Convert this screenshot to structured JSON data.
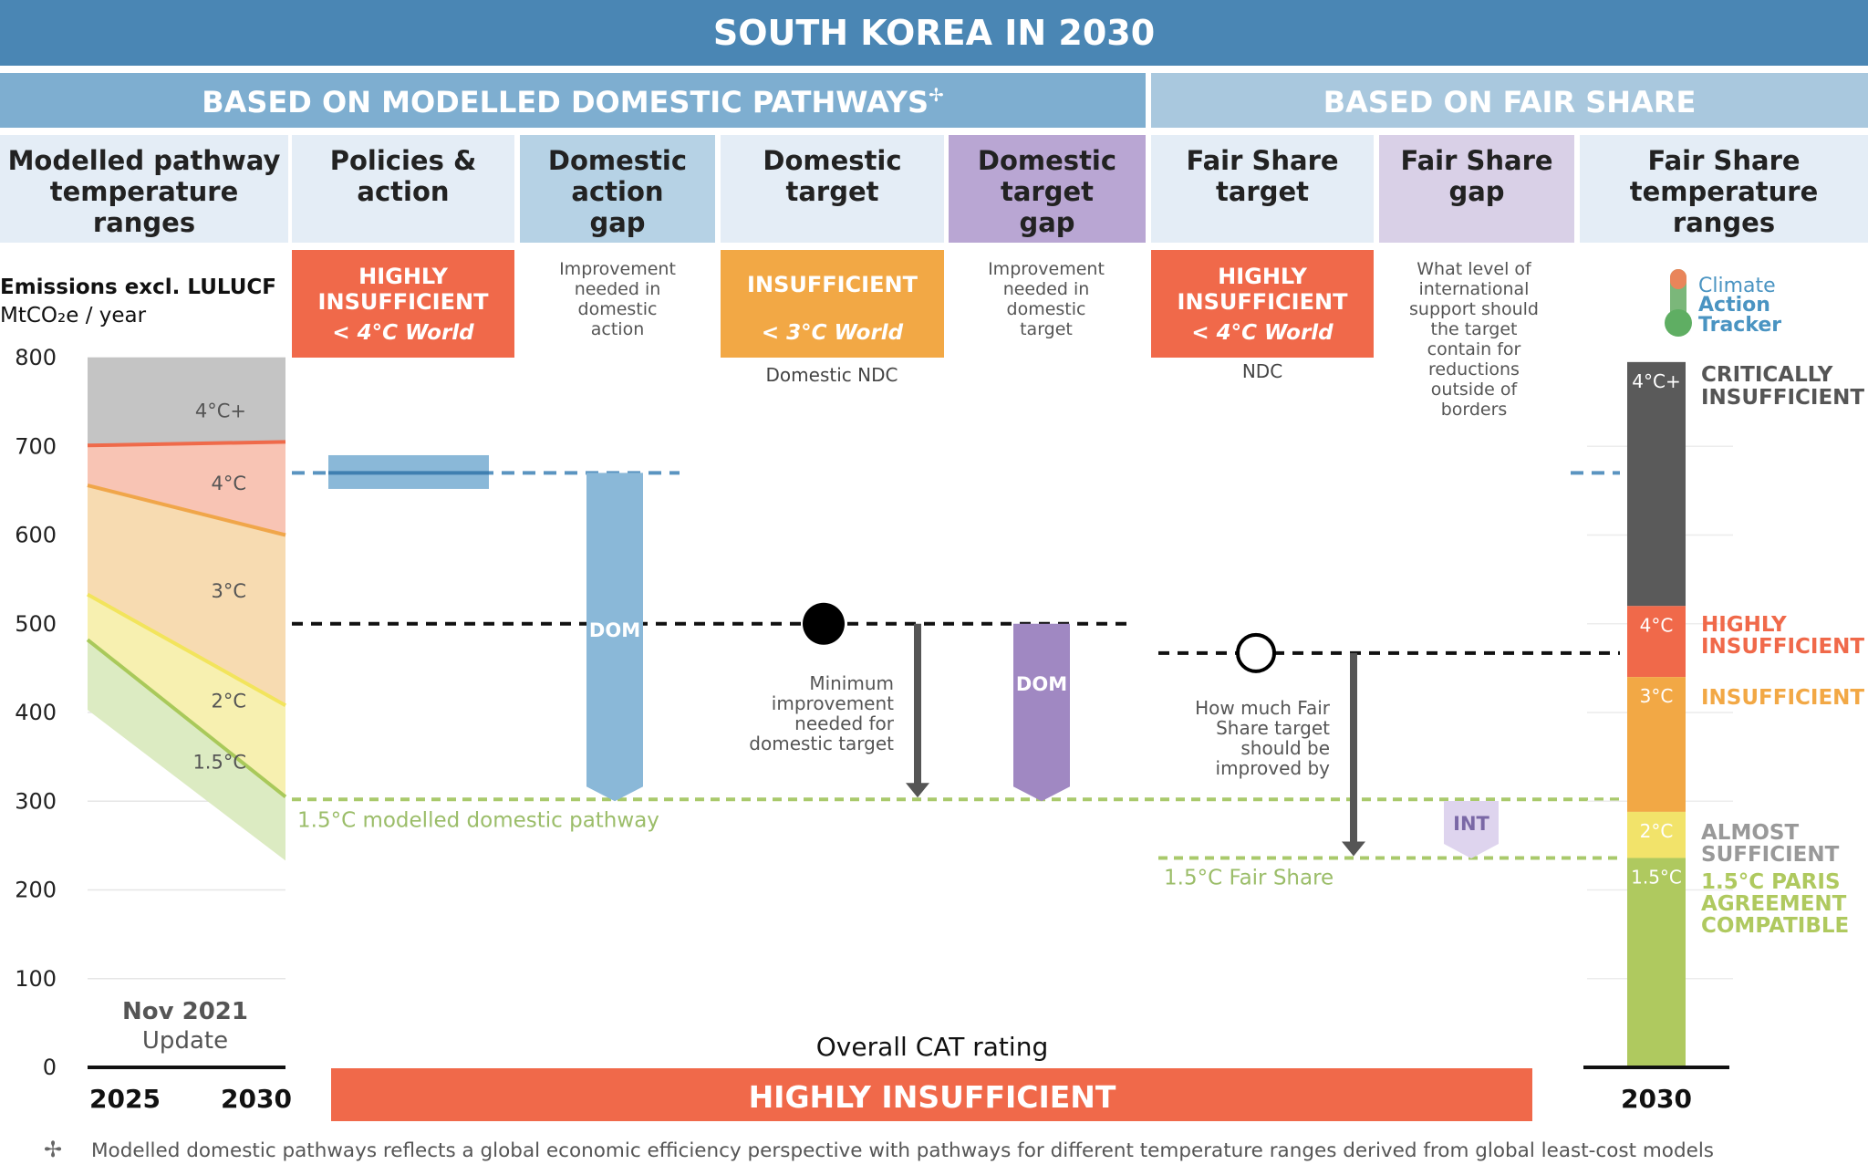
{
  "title": "SOUTH KOREA IN 2030",
  "sections": {
    "modelled": "BASED ON MODELLED DOMESTIC PATHWAYS",
    "modelled_mark": "✢",
    "fair": "BASED ON FAIR SHARE"
  },
  "columns": [
    [
      "Modelled pathway",
      "temperature",
      "ranges"
    ],
    [
      "Policies &",
      "action"
    ],
    [
      "Domestic",
      "action",
      "gap"
    ],
    [
      "Domestic",
      "target"
    ],
    [
      "Domestic",
      "target",
      "gap"
    ],
    [
      "Fair Share",
      "target"
    ],
    [
      "Fair Share",
      "gap"
    ],
    [
      "Fair Share",
      "temperature",
      "ranges"
    ]
  ],
  "ratings": {
    "policies": {
      "lines": [
        "HIGHLY",
        "INSUFFICIENT"
      ],
      "world": "< 4°C World"
    },
    "domestic_target": {
      "lines": [
        "INSUFFICIENT"
      ],
      "world": "< 3°C World",
      "sub": "Domestic NDC"
    },
    "fair_share": {
      "lines": [
        "HIGHLY",
        "INSUFFICIENT"
      ],
      "world": "< 4°C World",
      "sub": "NDC"
    }
  },
  "notes": {
    "domestic_action_gap": [
      "Improvement",
      "needed in",
      "domestic",
      "action"
    ],
    "domestic_target_gap": [
      "Improvement",
      "needed in",
      "domestic",
      "target"
    ],
    "fair_share_gap": [
      "What level of",
      "international",
      "support should",
      "the target",
      "contain for",
      "reductions",
      "outside of",
      "borders"
    ],
    "min_improvement": [
      "Minimum",
      "improvement",
      "needed for",
      "domestic target"
    ],
    "fair_improvement": [
      "How much Fair",
      "Share target",
      "should be",
      "improved by"
    ]
  },
  "logo": {
    "lines": [
      "Climate",
      "Action",
      "Tracker"
    ]
  },
  "labels": {
    "dom": "DOM",
    "int": "INT",
    "path_15": "1.5°C modelled domestic pathway",
    "fair_15": "1.5°C Fair Share",
    "update": [
      "Nov 2021",
      "Update"
    ],
    "overall_caption": "Overall CAT rating",
    "overall_rating": "HIGHLY INSUFFICIENT",
    "footnote_mark": "✢",
    "footnote": "Modelled domestic pathways reflects a global economic efficiency perspective with pathways for different temperature ranges derived from global least-cost models"
  },
  "colors": {
    "title_bg": "#4a86b4",
    "modelled_bg": "#7eaed0",
    "fair_bg": "#a9c8de",
    "col_bg_light": "#e4edf6",
    "col_bg_blue": "#b6d2e5",
    "col_bg_purple": "#b9a6d3",
    "col_bg_lilac": "#d9d0e7",
    "highly_insufficient": "#f0694a",
    "insufficient": "#f2a845",
    "critical": "#5a5a5a",
    "almost": "#f2e36a",
    "compatible": "#afc95f",
    "dom_blue": "#8ab8d8",
    "dom_purple": "#a088c2",
    "int_fill": "#ded4ee",
    "int_text": "#7a68a6",
    "green": "#a9c96b",
    "green_text": "#9bbd69",
    "arrow": "#555555",
    "policy_bar": "#8ab8d8",
    "policy_line": "#3f7fb0"
  },
  "chart_data": {
    "type": "area",
    "title": "SOUTH KOREA IN 2030",
    "ylabel": [
      "Emissions excl. LULUCF",
      "MtCO₂e / year"
    ],
    "ylim": [
      0,
      800
    ],
    "yticks": [
      0,
      100,
      200,
      300,
      400,
      500,
      600,
      700,
      800
    ],
    "x": [
      "2025",
      "2030"
    ],
    "grid": true,
    "temperature_bands": [
      {
        "name": "4°C+",
        "lower": [
          701,
          705
        ],
        "upper": [
          800,
          800
        ]
      },
      {
        "name": "4°C",
        "lower": [
          656,
          600
        ],
        "upper": [
          701,
          705
        ]
      },
      {
        "name": "3°C",
        "lower": [
          533,
          408
        ],
        "upper": [
          656,
          600
        ]
      },
      {
        "name": "2°C",
        "lower": [
          482,
          305
        ],
        "upper": [
          533,
          408
        ]
      },
      {
        "name": "1.5°C",
        "lower": [
          403,
          233
        ],
        "upper": [
          482,
          305
        ]
      }
    ],
    "policies_action": {
      "low": 652,
      "high": 690,
      "mid": 670,
      "rating": "HIGHLY INSUFFICIENT"
    },
    "domestic_target": {
      "value": 500,
      "rating": "INSUFFICIENT",
      "label": "Domestic NDC"
    },
    "fair_share_target": {
      "value": 467,
      "rating": "HIGHLY INSUFFICIENT",
      "label": "NDC"
    },
    "pathway_15_modelled": 302,
    "fair_share_15": 236,
    "fair_share_ranges": [
      {
        "name": "4°C+",
        "low": 520,
        "high": 795,
        "category": "CRITICALLY INSUFFICIENT"
      },
      {
        "name": "4°C",
        "low": 440,
        "high": 520,
        "category": "HIGHLY INSUFFICIENT"
      },
      {
        "name": "3°C",
        "low": 288,
        "high": 440,
        "category": "INSUFFICIENT"
      },
      {
        "name": "2°C",
        "low": 236,
        "high": 288,
        "category": "ALMOST SUFFICIENT"
      },
      {
        "name": "1.5°C",
        "low": 0,
        "high": 236,
        "category": "1.5°C PARIS AGREEMENT COMPATIBLE"
      }
    ],
    "right_axis_label": "2030",
    "overall_rating": "HIGHLY INSUFFICIENT"
  }
}
